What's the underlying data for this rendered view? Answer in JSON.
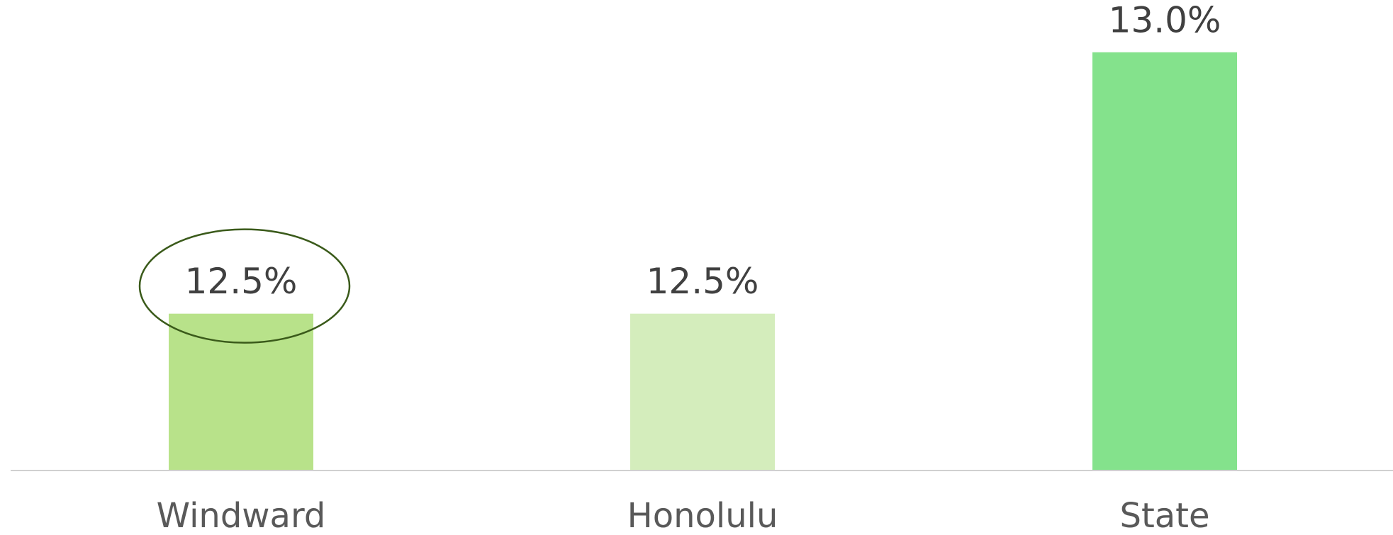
{
  "chart_data": {
    "type": "bar",
    "categories": [
      "Windward",
      "Honolulu",
      "State"
    ],
    "values": [
      12.5,
      12.5,
      13.0
    ],
    "value_labels": [
      "12.5%",
      "12.5%",
      "13.0%"
    ],
    "colors": [
      "#b8e28a",
      "#d4edbc",
      "#84e28c"
    ],
    "ylim": [
      12.2,
      13.1
    ]
  }
}
